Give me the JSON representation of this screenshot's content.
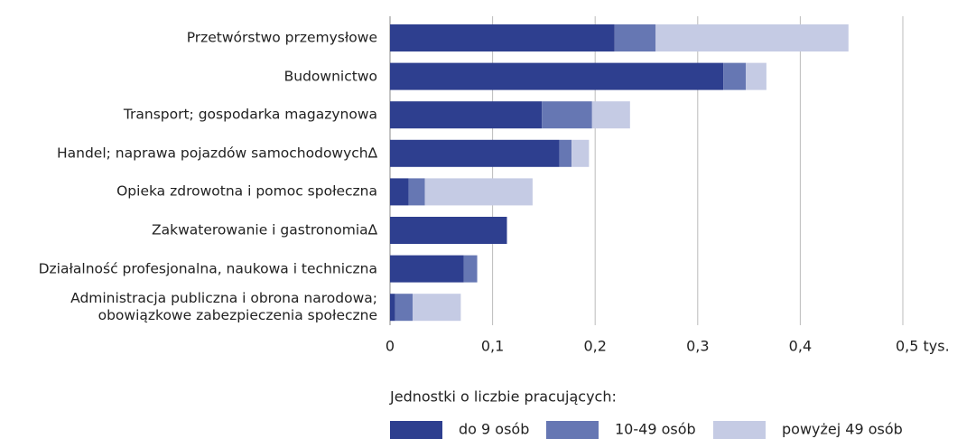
{
  "chart_data": {
    "type": "stacked-barh",
    "categories": [
      "Przetwórstwo przemysłowe",
      "Budownictwo",
      "Transport; gospodarka magazynowa",
      "Handel; naprawa pojazdów samochodowych∆",
      "Opieka zdrowotna i pomoc społeczna",
      "Zakwaterowanie i gastronomia∆",
      "Działalność profesjonalna, naukowa i techniczna",
      "Administracja publiczna i obrona narodowa;\nobowiązkowe zabezpieczenia społeczne"
    ],
    "series": [
      {
        "name": "do 9 osób",
        "color": "#2e3f8f",
        "values": [
          0.219,
          0.325,
          0.148,
          0.165,
          0.018,
          0.114,
          0.072,
          0.005
        ]
      },
      {
        "name": "10-49 osób",
        "color": "#6677b3",
        "values": [
          0.04,
          0.022,
          0.049,
          0.012,
          0.016,
          0,
          0.013,
          0.017
        ]
      },
      {
        "name": "powyżej 49 osób",
        "color": "#c5cbe4",
        "values": [
          0.188,
          0.02,
          0.037,
          0.017,
          0.105,
          0,
          0,
          0.047
        ]
      }
    ],
    "xlim": [
      0,
      0.5
    ],
    "xticks": [
      0,
      {
        "value": 0.1,
        "label": "0,1"
      },
      {
        "value": 0.2,
        "label": "0,2"
      },
      {
        "value": 0.3,
        "label": "0,3"
      },
      {
        "value": 0.4,
        "label": "0,4"
      },
      {
        "value": 0.5,
        "label": "0,5 tys."
      }
    ],
    "grid": true,
    "legend_title": "Jednostki o liczbie pracujących:"
  }
}
